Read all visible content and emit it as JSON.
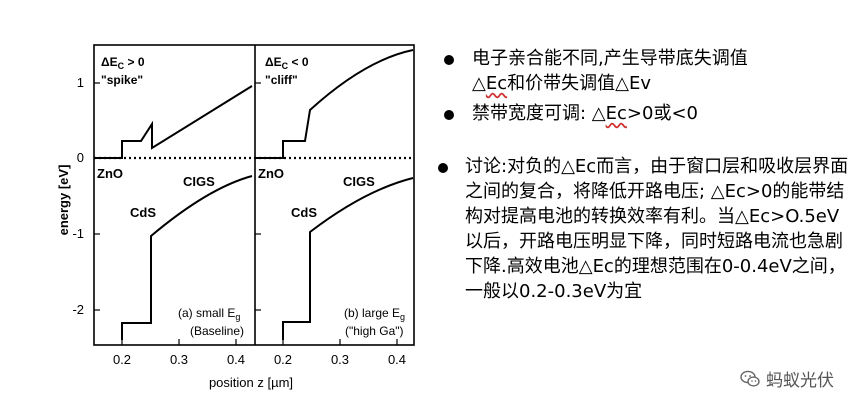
{
  "figure": {
    "ylabel": "energy [eV]",
    "xlabel": "position z [µm]",
    "y_ticks": [
      "1",
      "0",
      "-1",
      "-2"
    ],
    "x_ticks": [
      "0.2",
      "0.3",
      "0.4",
      "0.2",
      "0.3",
      "0.4"
    ],
    "panel_a": {
      "delta": "ΔE",
      "delta_sub": "C",
      "delta_rel": " > 0",
      "quote": "\"spike\"",
      "zno": "ZnO",
      "cds": "CdS",
      "cigs": "CIGS",
      "caption1": "(a) small E",
      "caption1_sub": "g",
      "caption2": "(Baseline)"
    },
    "panel_b": {
      "delta": "ΔE",
      "delta_sub": "C",
      "delta_rel": " < 0",
      "quote": "\"cliff\"",
      "zno": "ZnO",
      "cds": "CdS",
      "cigs": "CIGS",
      "caption1": "(b) large E",
      "caption1_sub": "g",
      "caption2": "(\"high Ga\")"
    }
  },
  "bullets": {
    "b1_line1": "电子亲合能不同,产生导带底失调值",
    "b1_line2_pre": "△",
    "b1_line2_ec": "Ec",
    "b1_line2_post": "和价带失调值△Ev",
    "b2_pre": "禁带宽度可调: △",
    "b2_ec": "Ec",
    "b2_post": ">0或<0",
    "b3_text": "讨论:对负的△Ec而言，由于窗口层和吸收层界面之间的复合，将降低开路电压; △Ec>0的能带结构对提高电池的转换效率有利。当△Ec>O.5eV以后，开路电压明显下降，同时短路电流也急剧下降.高效电池△Ec的理想范围在0-0.4eV之间，一般以0.2-0.3eV为宜"
  },
  "watermark": {
    "text": "蚂蚁光伏",
    "icon": "wechat-icon"
  }
}
